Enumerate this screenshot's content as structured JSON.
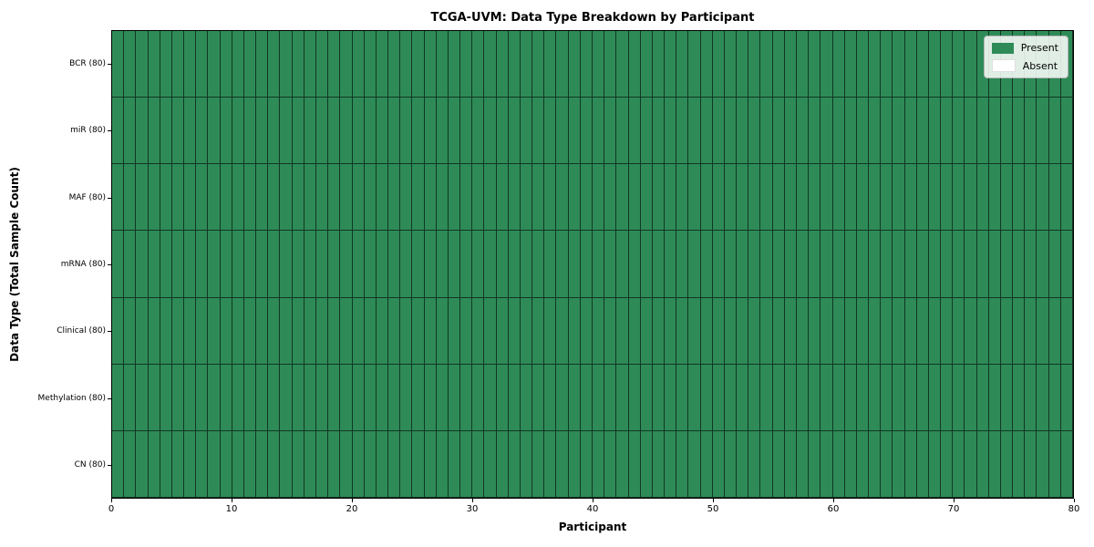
{
  "title": "TCGA-UVM: Data Type Breakdown by Participant",
  "chart_data": {
    "type": "heatmap",
    "title": "TCGA-UVM: Data Type Breakdown by Participant",
    "xlabel": "Participant",
    "ylabel": "Data Type (Total Sample Count)",
    "xlim": [
      0,
      80
    ],
    "x_ticks": [
      0,
      10,
      20,
      30,
      40,
      50,
      60,
      70,
      80
    ],
    "participants": 80,
    "grid": "cell-borders",
    "rows": [
      {
        "label": "BCR (80)",
        "data_type": "BCR",
        "total_samples": 80,
        "present_count": 80,
        "absent_count": 0
      },
      {
        "label": "miR (80)",
        "data_type": "miR",
        "total_samples": 80,
        "present_count": 80,
        "absent_count": 0
      },
      {
        "label": "MAF (80)",
        "data_type": "MAF",
        "total_samples": 80,
        "present_count": 80,
        "absent_count": 0
      },
      {
        "label": "mRNA (80)",
        "data_type": "mRNA",
        "total_samples": 80,
        "present_count": 80,
        "absent_count": 0
      },
      {
        "label": "Clinical (80)",
        "data_type": "Clinical",
        "total_samples": 80,
        "present_count": 80,
        "absent_count": 0
      },
      {
        "label": "Methylation (80)",
        "data_type": "Methylation",
        "total_samples": 80,
        "present_count": 80,
        "absent_count": 0
      },
      {
        "label": "CN (80)",
        "data_type": "CN",
        "total_samples": 80,
        "present_count": 80,
        "absent_count": 0
      }
    ],
    "legend": {
      "position": "upper right",
      "entries": [
        {
          "label": "Present",
          "color": "#2e8b57"
        },
        {
          "label": "Absent",
          "color": "#ffffff"
        }
      ]
    },
    "colors": {
      "present": "#2e8b57",
      "absent": "#ffffff",
      "cell_border": "rgba(10,34,22,0.8)",
      "spine": "#000000"
    }
  }
}
